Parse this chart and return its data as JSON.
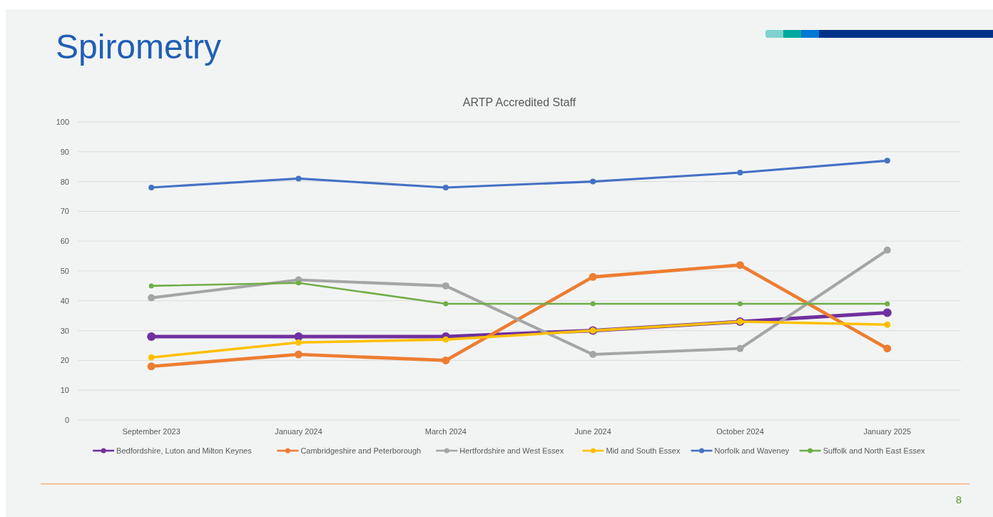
{
  "chart_data": {
    "type": "line",
    "title": "Spirometry",
    "subtitle": "ARTP Accredited Staff",
    "categories": [
      "September 2023",
      "January 2024",
      "March 2024",
      "June 2024",
      "October 2024",
      "January 2025"
    ],
    "series": [
      {
        "name": "Bedfordshire, Luton and Milton Keynes",
        "color": "#7030a0",
        "values": [
          28,
          28,
          28,
          30,
          33,
          36
        ]
      },
      {
        "name": "Cambridgeshire and Peterborough",
        "color": "#ed7d31",
        "values": [
          18,
          22,
          20,
          48,
          52,
          24
        ]
      },
      {
        "name": "Hertfordshire and West Essex",
        "color": "#a5a5a5",
        "values": [
          41,
          47,
          45,
          22,
          24,
          57
        ]
      },
      {
        "name": "Mid and South Essex",
        "color": "#ffc000",
        "values": [
          21,
          26,
          27,
          30,
          33,
          32
        ]
      },
      {
        "name": "Norfolk and Waveney",
        "color": "#4472c4",
        "values": [
          78,
          81,
          78,
          80,
          83,
          87
        ]
      },
      {
        "name": "Suffolk and North East Essex",
        "color": "#70ad47",
        "values": [
          45,
          46,
          39,
          39,
          39,
          39
        ]
      }
    ],
    "ylim": [
      0,
      100
    ],
    "yticks": [
      0,
      10,
      20,
      30,
      40,
      50,
      60,
      70,
      80,
      90,
      100
    ],
    "grid": "y",
    "legend": "bottom",
    "marker": "circle",
    "line_style": "solid",
    "annotations": [
      "8"
    ]
  }
}
